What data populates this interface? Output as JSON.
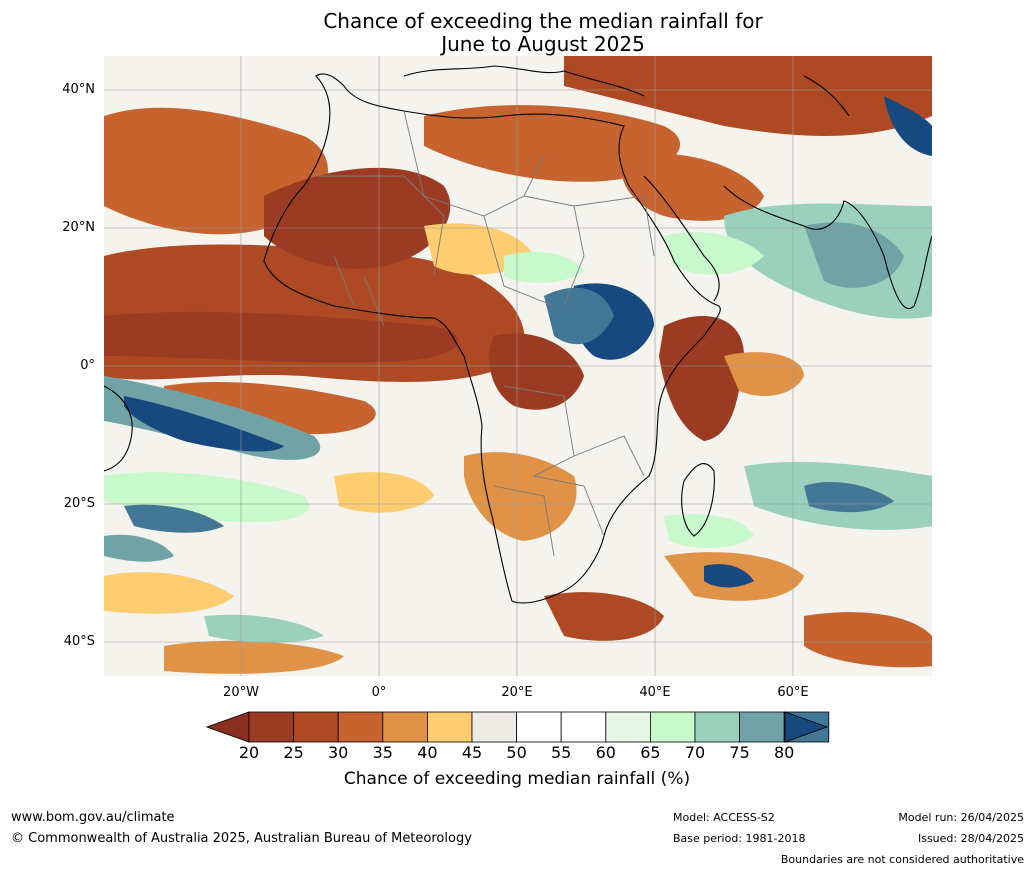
{
  "title": {
    "line1": "Chance of exceeding the median rainfall for",
    "line2": "June to August 2025"
  },
  "map": {
    "region": "Africa",
    "lat_ticks": [
      "40°N",
      "20°N",
      "0°",
      "20°S",
      "40°S"
    ],
    "lon_ticks": [
      "20°W",
      "0°",
      "20°E",
      "40°E",
      "60°E"
    ]
  },
  "colorbar": {
    "ticks": [
      "20",
      "25",
      "30",
      "35",
      "40",
      "45",
      "50",
      "55",
      "60",
      "65",
      "70",
      "75",
      "80"
    ],
    "colors": [
      "#9b3b22",
      "#ad4a24",
      "#c7632f",
      "#e09346",
      "#fdcd6f",
      "#ecebe6",
      "#ffffff",
      "#ffffff",
      "#e5f5e6",
      "#c7f9cc",
      "#9bd0bc",
      "#6fa3a6",
      "#427896"
    ],
    "under_color": "#8a3020",
    "over_color": "#15497f",
    "label": "Chance of exceeding median rainfall (%)"
  },
  "footer": {
    "website": "www.bom.gov.au/climate",
    "copyright": "© Commonwealth of Australia 2025, Australian Bureau of Meteorology",
    "model": "Model: ACCESS-S2",
    "base_period": "Base period: 1981-2018",
    "model_run": "Model run: 26/04/2025",
    "issued": "Issued: 28/04/2025",
    "disclaimer": "Boundaries are not considered authoritative"
  }
}
